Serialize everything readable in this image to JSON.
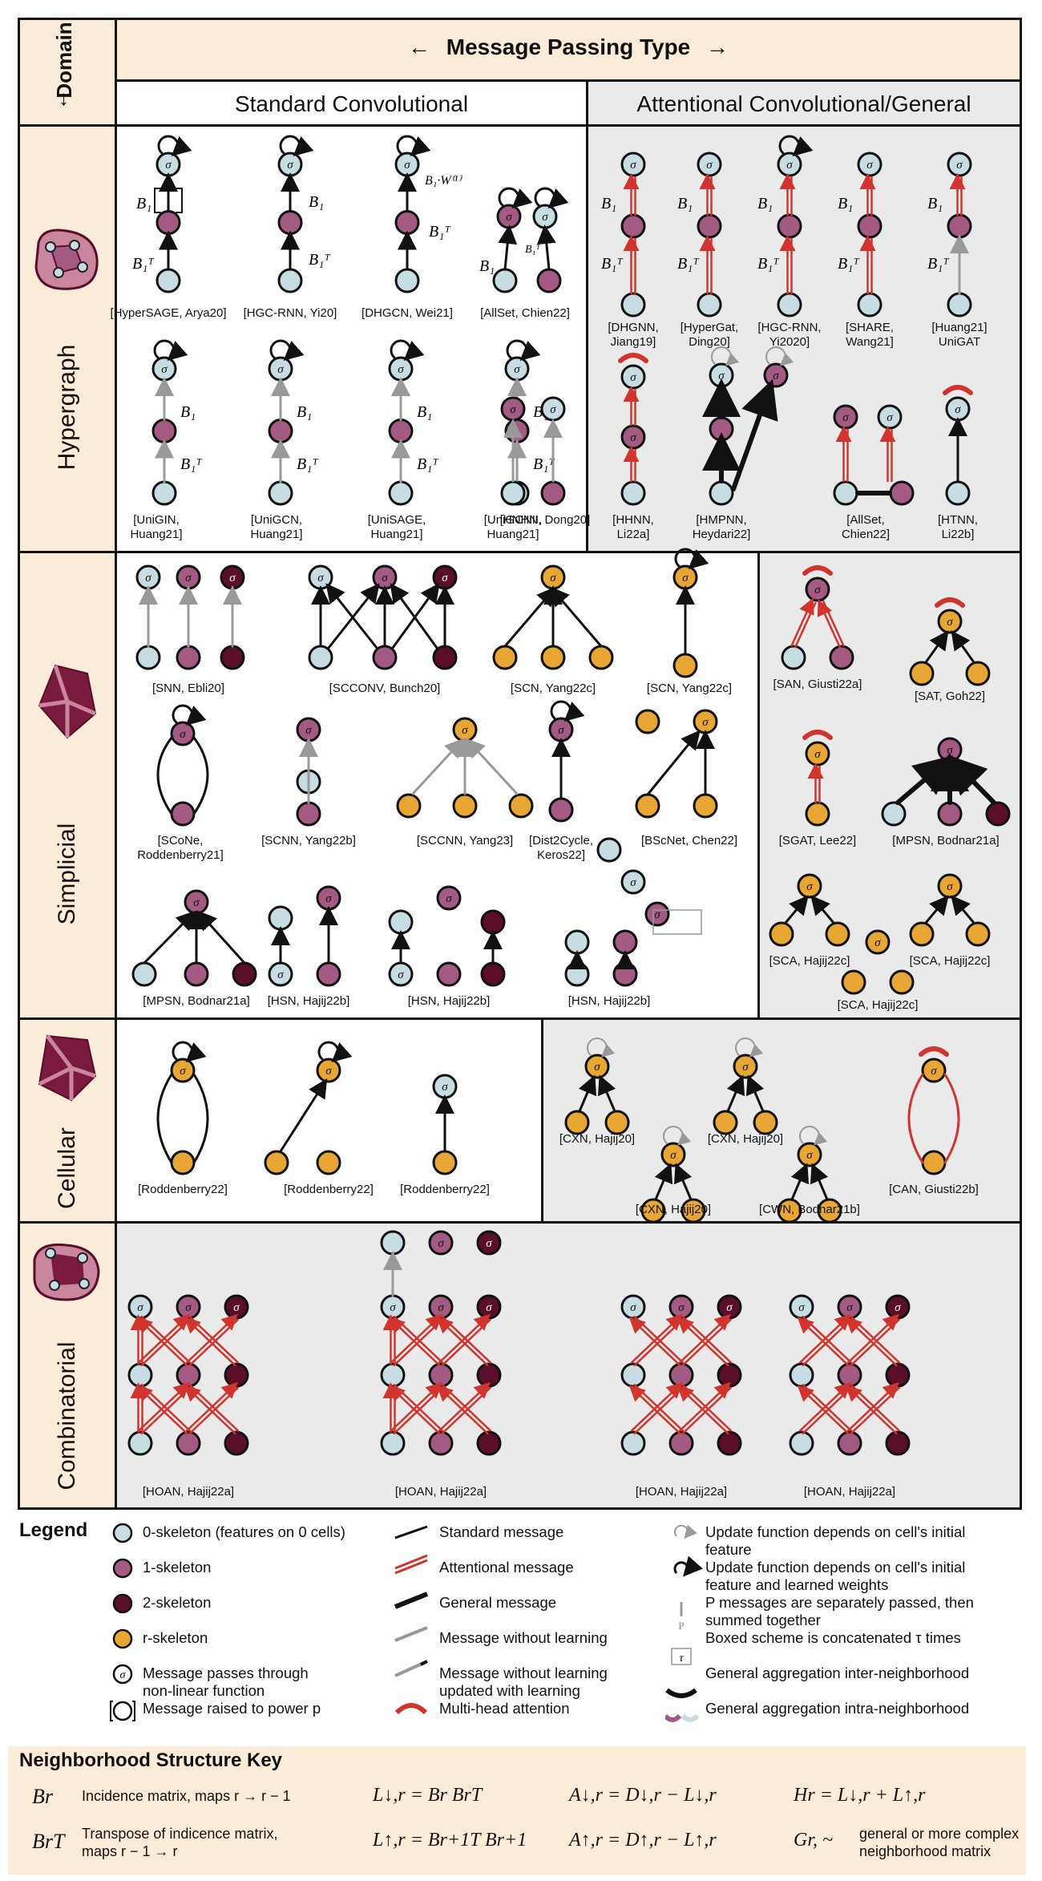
{
  "header": {
    "domain": "Domain",
    "arrow_down": "↓",
    "mpt": "Message Passing Type",
    "arrow_left": "←",
    "arrow_right": "→",
    "standard": "Standard Convolutional",
    "attentional": "Attentional Convolutional/General"
  },
  "rows": {
    "hypergraph": "Hypergraph",
    "simplicial": "Simplicial",
    "cellular": "Cellular",
    "combinatorial": "Combinatorial"
  },
  "captions": {
    "hyp_std_top": [
      "[HyperSAGE, Arya20]",
      "[HGC-RNN, Yi20]",
      "[DHGCN, Wei21]",
      "[AllSet, Chien22]"
    ],
    "hyp_std_bot": [
      "[UniGIN,\nHuang21]",
      "[UniGCN,\nHuang21]",
      "[UniSAGE,\nHuang21]",
      "[UniGCNII,\nHuang21]",
      "[HNHN, Dong20]"
    ],
    "hyp_att_top": [
      "[DHGNN,\nJiang19]",
      "[HyperGat,\nDing20]",
      "[HGC-RNN,\nYi2020]",
      "[SHARE,\nWang21]",
      "[Huang21]\nUniGAT"
    ],
    "hyp_att_bot": [
      "[HHNN,\nLi22a]",
      "[HMPNN,\nHeydari22]",
      "[AllSet,\nChien22]",
      "[HTNN,\nLi22b]"
    ],
    "simp_std_r1": [
      "[SNN, Ebli20]",
      "[SCCONV, Bunch20]",
      "[SCN, Yang22c]",
      "[SCN, Yang22c]"
    ],
    "simp_std_r2": [
      "[SCoNe,\nRoddenberry21]",
      "[SCNN, Yang22b]",
      "[SCCNN, Yang23]",
      "[Dist2Cycle,\nKeros22]",
      "[BScNet, Chen22]"
    ],
    "simp_std_r3": [
      "[MPSN, Bodnar21a]",
      "[HSN, Hajij22b]",
      "[HSN, Hajij22b]",
      "[HSN, Hajij22b]"
    ],
    "simp_att": [
      "[SAN, Giusti22a]",
      "[SAT, Goh22]",
      "[SGAT, Lee22]",
      "[MPSN, Bodnar21a]",
      "[SCA, Hajij22c]",
      "[SCA, Hajij22c]",
      "[SCA, Hajij22c]"
    ],
    "cell_std": [
      "[Roddenberry22]",
      "[Roddenberry22]",
      "[Roddenberry22]"
    ],
    "cell_att": [
      "[CXN, Hajij20]",
      "[CXN, Hajij20]",
      "[CXN, Hajij20]",
      "[CWN, Bodnar21b]",
      "[CAN, Giusti22b]"
    ],
    "comb": [
      "[HOAN, Hajij22a]",
      "[HOAN, Hajij22a]",
      "[HOAN, Hajij22a]",
      "[HOAN, Hajij22a]"
    ]
  },
  "legend": {
    "title": "Legend",
    "col1": [
      "0-skeleton (features on 0 cells)",
      "1-skeleton",
      "2-skeleton",
      "r-skeleton",
      "Message passes through\nnon-linear function",
      "Message raised to power p"
    ],
    "col2": [
      "Standard message",
      "Attentional message",
      "General message",
      "Message without learning",
      "Message without learning\nupdated with learning",
      "Multi-head attention"
    ],
    "col3": [
      "Update function depends on cell's initial\nfeature",
      "Update function depends on cell's initial\nfeature and learned weights",
      "P messages are separately passed, then\nsummed together",
      "Boxed scheme is concatenated τ times",
      "General aggregation inter-neighborhood",
      "General aggregation intra-neighborhood"
    ]
  },
  "key": {
    "title": "Neighborhood Structure Key",
    "br": "Br",
    "br_desc": "Incidence matrix, maps r → r − 1",
    "brt": "BrT",
    "brt_desc": "Transpose of indicence matrix,\nmaps r − 1 → r",
    "l_down": "L↓,r = Br BrT",
    "l_up": "L↑,r = Br+1T Br+1",
    "a_down": "A↓,r = D↓,r − L↓,r",
    "a_up": "A↑,r = D↑,r − L↑,r",
    "h": "Hr = L↓,r + L↑,r",
    "g": "Gr, ~",
    "g_desc": "general or more complex\nneighborhood matrix"
  },
  "colors": {
    "header_bg": "#fbecd9",
    "gray_bg": "#eaeaea",
    "node0": "#c8dce3",
    "node1": "#a35b84",
    "node2": "#5a0e2a",
    "noder": "#e8a634",
    "attn": "#d0342c",
    "key_bg": "#fbecd9"
  }
}
